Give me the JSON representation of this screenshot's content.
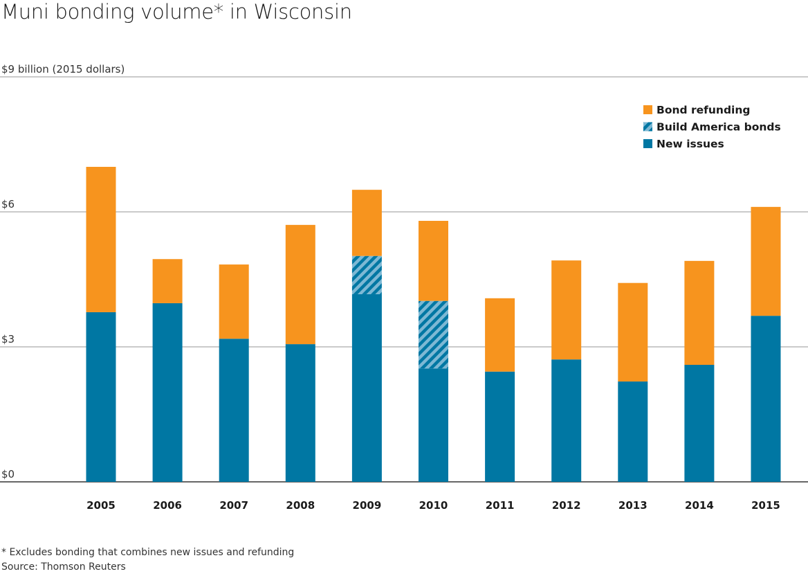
{
  "title": "Muni bonding volume* in Wisconsin",
  "footnotes": {
    "note": "* Excludes bonding that combines new issues and refunding",
    "source": "Source: Thomson Reuters"
  },
  "colors": {
    "new_issues": "#0077a3",
    "build_america_stripe_light": "#7db8d4",
    "bond_refunding": "#f7941e",
    "gridline": "#aaaaaa",
    "baseline": "#333333"
  },
  "chart_data": {
    "type": "bar",
    "stacked": true,
    "title": "Muni bonding volume* in Wisconsin",
    "ylabel": "billion (2015 dollars)",
    "xlabel": "",
    "ylim": [
      0,
      9
    ],
    "yticks": [
      {
        "value": 0,
        "label": "$0"
      },
      {
        "value": 3,
        "label": "$3"
      },
      {
        "value": 6,
        "label": "$6"
      },
      {
        "value": 9,
        "label": "$9"
      }
    ],
    "ytick_unit_label": "billion (2015 dollars)",
    "grid": true,
    "legend_position": "top-right",
    "categories": [
      "2005",
      "2006",
      "2007",
      "2008",
      "2009",
      "2010",
      "2011",
      "2012",
      "2013",
      "2014",
      "2015"
    ],
    "series": [
      {
        "name": "New issues",
        "key": "new_issues",
        "pattern": "solid",
        "values": [
          3.77,
          3.97,
          3.18,
          3.06,
          4.17,
          2.52,
          2.45,
          2.72,
          2.23,
          2.6,
          3.69
        ]
      },
      {
        "name": "Build America bonds",
        "key": "build_america",
        "pattern": "hatched",
        "values": [
          0,
          0,
          0,
          0,
          0.85,
          1.5,
          0,
          0,
          0,
          0,
          0
        ]
      },
      {
        "name": "Bond refunding",
        "key": "bond_refunding",
        "pattern": "solid",
        "values": [
          3.23,
          0.98,
          1.65,
          2.65,
          1.47,
          1.78,
          1.63,
          2.2,
          2.19,
          2.31,
          2.42
        ]
      }
    ],
    "legend": [
      {
        "label": "Bond refunding",
        "key": "bond_refunding"
      },
      {
        "label": "Build America bonds",
        "key": "build_america"
      },
      {
        "label": "New issues",
        "key": "new_issues"
      }
    ]
  }
}
